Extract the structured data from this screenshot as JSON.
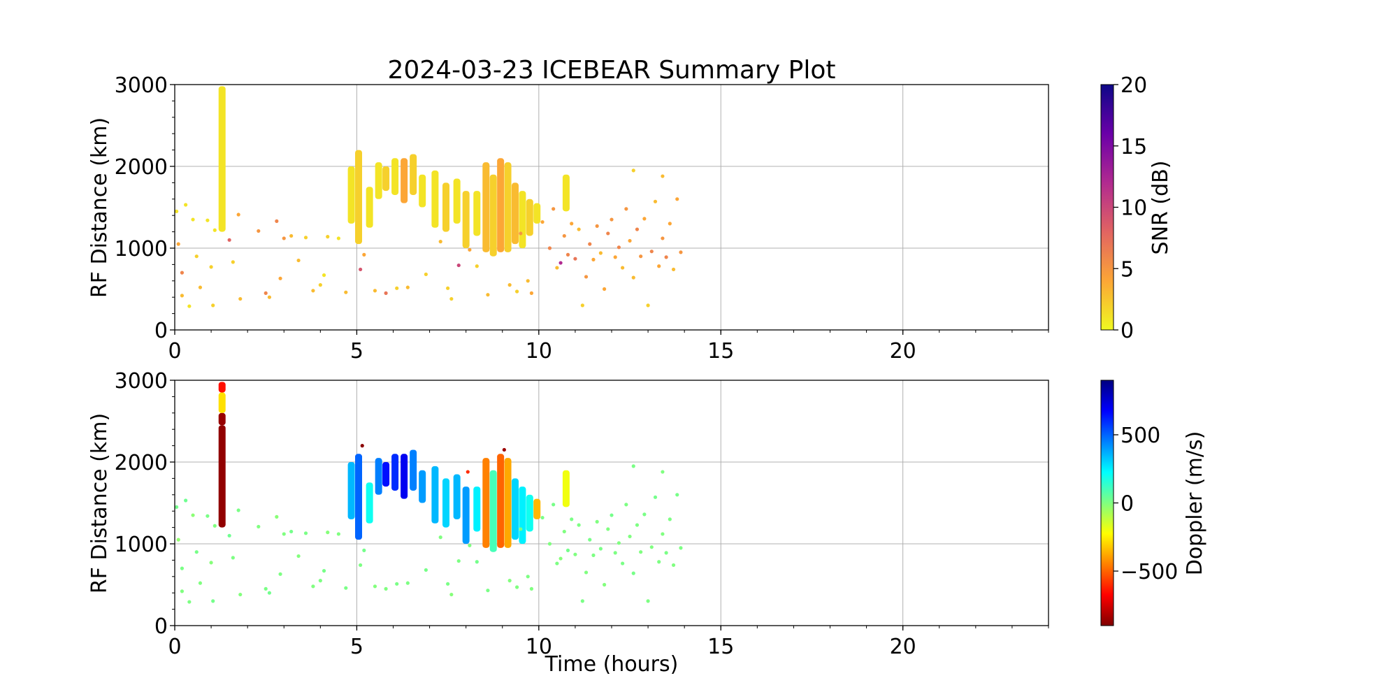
{
  "title": "2024-03-23 ICEBEAR Summary Plot",
  "chart_data": [
    {
      "type": "scatter",
      "panel": "top",
      "ylabel": "RF Distance (km)",
      "xlabel": "",
      "xlim": [
        0,
        24
      ],
      "ylim": [
        0,
        3000
      ],
      "xticks": [
        "0",
        "5",
        "10",
        "15",
        "20"
      ],
      "yticks": [
        "0",
        "1000",
        "2000",
        "3000"
      ],
      "grid": true,
      "color_variable": {
        "label": "SNR (dB)",
        "range": [
          0,
          20
        ],
        "ticks": [
          "0",
          "5",
          "10",
          "15",
          "20"
        ],
        "colormap": "plasma_r",
        "colors": [
          "#f0f921",
          "#fca636",
          "#e16462",
          "#b12a90",
          "#6a00a8",
          "#0d0887"
        ]
      },
      "points": [
        [
          0.05,
          1450,
          1
        ],
        [
          0.1,
          1050,
          4
        ],
        [
          0.2,
          700,
          6
        ],
        [
          0.2,
          420,
          3
        ],
        [
          0.3,
          1530,
          1
        ],
        [
          0.4,
          290,
          1
        ],
        [
          0.5,
          1350,
          1
        ],
        [
          0.6,
          900,
          2
        ],
        [
          0.7,
          520,
          3
        ],
        [
          0.9,
          1340,
          1
        ],
        [
          1.0,
          770,
          2
        ],
        [
          1.05,
          300,
          2
        ],
        [
          1.1,
          1220,
          1
        ],
        [
          1.5,
          1100,
          8
        ],
        [
          1.6,
          830,
          2
        ],
        [
          1.75,
          1410,
          4
        ],
        [
          1.8,
          380,
          3
        ],
        [
          2.3,
          1210,
          5
        ],
        [
          2.5,
          450,
          6
        ],
        [
          2.6,
          400,
          3
        ],
        [
          2.8,
          1330,
          6
        ],
        [
          2.9,
          630,
          4
        ],
        [
          3.0,
          1120,
          5
        ],
        [
          3.2,
          1150,
          3
        ],
        [
          3.4,
          850,
          3
        ],
        [
          3.6,
          1130,
          2
        ],
        [
          3.8,
          480,
          3
        ],
        [
          4.0,
          550,
          2
        ],
        [
          4.1,
          670,
          1
        ],
        [
          4.2,
          1140,
          2
        ],
        [
          4.5,
          1120,
          1
        ],
        [
          4.7,
          460,
          3
        ],
        [
          5.1,
          740,
          9
        ],
        [
          5.2,
          920,
          4
        ],
        [
          5.5,
          480,
          3
        ],
        [
          5.8,
          450,
          7
        ],
        [
          6.1,
          510,
          2
        ],
        [
          6.4,
          520,
          3
        ],
        [
          6.9,
          680,
          2
        ],
        [
          7.3,
          1080,
          3
        ],
        [
          7.5,
          510,
          2
        ],
        [
          7.6,
          380,
          2
        ],
        [
          7.8,
          790,
          10
        ],
        [
          8.1,
          980,
          4
        ],
        [
          8.3,
          780,
          2
        ],
        [
          8.6,
          430,
          3
        ],
        [
          9.2,
          550,
          3
        ],
        [
          9.4,
          470,
          2
        ],
        [
          9.5,
          1180,
          5
        ],
        [
          9.7,
          600,
          3
        ],
        [
          9.8,
          450,
          4
        ],
        [
          10.1,
          1320,
          4
        ],
        [
          10.3,
          1000,
          6
        ],
        [
          10.4,
          1480,
          5
        ],
        [
          10.5,
          760,
          3
        ],
        [
          10.6,
          820,
          12
        ],
        [
          10.7,
          1150,
          5
        ],
        [
          10.8,
          920,
          6
        ],
        [
          10.9,
          1300,
          4
        ],
        [
          11.0,
          870,
          7
        ],
        [
          11.1,
          1230,
          3
        ],
        [
          11.2,
          300,
          2
        ],
        [
          11.3,
          650,
          5
        ],
        [
          11.4,
          1050,
          6
        ],
        [
          11.5,
          860,
          4
        ],
        [
          11.6,
          1270,
          5
        ],
        [
          11.7,
          940,
          3
        ],
        [
          11.8,
          500,
          4
        ],
        [
          11.9,
          1180,
          6
        ],
        [
          12.0,
          1350,
          5
        ],
        [
          12.1,
          890,
          4
        ],
        [
          12.2,
          1010,
          6
        ],
        [
          12.3,
          760,
          3
        ],
        [
          12.4,
          1480,
          5
        ],
        [
          12.5,
          1090,
          4
        ],
        [
          12.6,
          640,
          3
        ],
        [
          12.7,
          1230,
          6
        ],
        [
          12.8,
          900,
          5
        ],
        [
          12.9,
          1360,
          4
        ],
        [
          13.0,
          300,
          2
        ],
        [
          13.1,
          960,
          6
        ],
        [
          13.2,
          1570,
          3
        ],
        [
          13.3,
          780,
          4
        ],
        [
          13.4,
          1120,
          5
        ],
        [
          13.5,
          890,
          6
        ],
        [
          13.6,
          1300,
          4
        ],
        [
          13.7,
          740,
          3
        ],
        [
          13.8,
          1600,
          4
        ],
        [
          13.9,
          950,
          5
        ],
        [
          12.6,
          1950,
          2
        ],
        [
          13.4,
          1880,
          3
        ]
      ],
      "swaths": [
        [
          1.3,
          1200,
          2980,
          1
        ],
        [
          4.85,
          1300,
          2000,
          1
        ],
        [
          5.05,
          1050,
          2200,
          2
        ],
        [
          5.35,
          1250,
          1750,
          1
        ],
        [
          5.6,
          1600,
          2050,
          1
        ],
        [
          5.8,
          1700,
          2000,
          2
        ],
        [
          6.05,
          1650,
          2100,
          1
        ],
        [
          6.3,
          1550,
          2100,
          4
        ],
        [
          6.55,
          1650,
          2150,
          2
        ],
        [
          6.8,
          1500,
          1900,
          1
        ],
        [
          7.15,
          1250,
          1950,
          1
        ],
        [
          7.45,
          1200,
          1800,
          2
        ],
        [
          7.75,
          1300,
          1850,
          1
        ],
        [
          8.0,
          1000,
          1700,
          2
        ],
        [
          8.3,
          1150,
          1700,
          1
        ],
        [
          8.55,
          950,
          2050,
          3
        ],
        [
          8.75,
          900,
          1900,
          2
        ],
        [
          8.95,
          950,
          2100,
          4
        ],
        [
          9.15,
          950,
          2050,
          2
        ],
        [
          9.35,
          1050,
          1800,
          3
        ],
        [
          9.55,
          1000,
          1700,
          1
        ],
        [
          9.75,
          1150,
          1600,
          2
        ],
        [
          9.95,
          1300,
          1550,
          1
        ],
        [
          10.75,
          1450,
          1900,
          1
        ]
      ]
    },
    {
      "type": "scatter",
      "panel": "bottom",
      "ylabel": "RF Distance (km)",
      "xlabel": "Time (hours)",
      "xlim": [
        0,
        24
      ],
      "ylim": [
        0,
        3000
      ],
      "xticks": [
        "0",
        "5",
        "10",
        "15",
        "20"
      ],
      "yticks": [
        "0",
        "1000",
        "2000",
        "3000"
      ],
      "grid": true,
      "color_variable": {
        "label": "Doppler (m/s)",
        "range": [
          -900,
          900
        ],
        "ticks": [
          "−500",
          "0",
          "500"
        ],
        "tick_values": [
          -500,
          0,
          500
        ],
        "colormap": "jet_r",
        "colors": [
          "#800000",
          "#ff0000",
          "#ff8000",
          "#ffff00",
          "#80ff80",
          "#00ffff",
          "#0080ff",
          "#0000ff",
          "#000080"
        ]
      },
      "points": [
        [
          0.05,
          1450,
          20
        ],
        [
          0.1,
          1050,
          -30
        ],
        [
          0.2,
          700,
          10
        ],
        [
          0.2,
          420,
          0
        ],
        [
          0.3,
          1530,
          30
        ],
        [
          0.4,
          290,
          5
        ],
        [
          0.5,
          1350,
          -20
        ],
        [
          0.6,
          900,
          15
        ],
        [
          0.7,
          520,
          0
        ],
        [
          0.9,
          1340,
          10
        ],
        [
          1.0,
          770,
          -10
        ],
        [
          1.05,
          300,
          20
        ],
        [
          1.1,
          1220,
          0
        ],
        [
          1.5,
          1100,
          30
        ],
        [
          1.6,
          830,
          5
        ],
        [
          1.75,
          1410,
          10
        ],
        [
          1.8,
          380,
          -5
        ],
        [
          2.3,
          1210,
          0
        ],
        [
          2.5,
          450,
          10
        ],
        [
          2.6,
          400,
          25
        ],
        [
          2.8,
          1330,
          -15
        ],
        [
          2.9,
          630,
          5
        ],
        [
          3.0,
          1120,
          0
        ],
        [
          3.2,
          1150,
          20
        ],
        [
          3.4,
          850,
          -5
        ],
        [
          3.6,
          1130,
          10
        ],
        [
          3.8,
          480,
          0
        ],
        [
          4.0,
          550,
          5
        ],
        [
          4.1,
          670,
          15
        ],
        [
          4.2,
          1140,
          -10
        ],
        [
          4.5,
          1120,
          0
        ],
        [
          4.7,
          460,
          10
        ],
        [
          5.1,
          740,
          5
        ],
        [
          5.2,
          920,
          20
        ],
        [
          5.5,
          480,
          -5
        ],
        [
          5.8,
          450,
          0
        ],
        [
          6.1,
          510,
          10
        ],
        [
          6.4,
          520,
          5
        ],
        [
          6.9,
          680,
          15
        ],
        [
          7.3,
          1080,
          0
        ],
        [
          7.5,
          510,
          10
        ],
        [
          7.6,
          380,
          -10
        ],
        [
          7.8,
          790,
          5
        ],
        [
          8.1,
          980,
          0
        ],
        [
          8.3,
          780,
          20
        ],
        [
          8.6,
          430,
          10
        ],
        [
          9.2,
          550,
          -5
        ],
        [
          9.4,
          470,
          0
        ],
        [
          9.5,
          1180,
          10
        ],
        [
          9.7,
          600,
          5
        ],
        [
          9.8,
          450,
          0
        ],
        [
          10.1,
          1320,
          10
        ],
        [
          10.3,
          1000,
          0
        ],
        [
          10.4,
          1480,
          15
        ],
        [
          10.5,
          760,
          5
        ],
        [
          10.6,
          820,
          -10
        ],
        [
          10.7,
          1150,
          0
        ],
        [
          10.8,
          920,
          20
        ],
        [
          10.9,
          1300,
          10
        ],
        [
          11.0,
          870,
          0
        ],
        [
          11.1,
          1230,
          5
        ],
        [
          11.2,
          300,
          10
        ],
        [
          11.3,
          650,
          0
        ],
        [
          11.4,
          1050,
          15
        ],
        [
          11.5,
          860,
          5
        ],
        [
          11.6,
          1270,
          0
        ],
        [
          11.7,
          940,
          10
        ],
        [
          11.8,
          500,
          -5
        ],
        [
          11.9,
          1180,
          0
        ],
        [
          12.0,
          1350,
          20
        ],
        [
          12.1,
          890,
          5
        ],
        [
          12.2,
          1010,
          0
        ],
        [
          12.3,
          760,
          10
        ],
        [
          12.4,
          1480,
          5
        ],
        [
          12.5,
          1090,
          0
        ],
        [
          12.6,
          640,
          15
        ],
        [
          12.7,
          1230,
          5
        ],
        [
          12.8,
          900,
          0
        ],
        [
          12.9,
          1360,
          10
        ],
        [
          13.0,
          300,
          5
        ],
        [
          13.1,
          960,
          0
        ],
        [
          13.2,
          1570,
          20
        ],
        [
          13.3,
          780,
          5
        ],
        [
          13.4,
          1120,
          0
        ],
        [
          13.5,
          890,
          10
        ],
        [
          13.6,
          1300,
          5
        ],
        [
          13.7,
          740,
          0
        ],
        [
          13.8,
          1600,
          15
        ],
        [
          13.9,
          950,
          5
        ],
        [
          12.6,
          1950,
          10
        ],
        [
          13.4,
          1880,
          0
        ],
        [
          5.15,
          2200,
          -880
        ],
        [
          9.05,
          2150,
          -850
        ],
        [
          8.05,
          1880,
          -600
        ]
      ],
      "swaths": [
        [
          1.3,
          1200,
          2450,
          -870
        ],
        [
          1.3,
          2450,
          2600,
          -860
        ],
        [
          1.3,
          2600,
          2850,
          -280
        ],
        [
          1.3,
          2850,
          2980,
          -650
        ],
        [
          4.85,
          1300,
          2000,
          350
        ],
        [
          5.05,
          1050,
          2100,
          500
        ],
        [
          5.35,
          1250,
          1750,
          200
        ],
        [
          5.6,
          1600,
          2050,
          450
        ],
        [
          5.8,
          1700,
          2000,
          650
        ],
        [
          6.05,
          1650,
          2100,
          600
        ],
        [
          6.3,
          1550,
          2100,
          700
        ],
        [
          6.55,
          1650,
          2150,
          450
        ],
        [
          6.8,
          1500,
          1900,
          400
        ],
        [
          7.15,
          1250,
          1950,
          350
        ],
        [
          7.45,
          1200,
          1800,
          300
        ],
        [
          7.75,
          1300,
          1850,
          350
        ],
        [
          8.0,
          1000,
          1700,
          400
        ],
        [
          8.3,
          1150,
          1700,
          250
        ],
        [
          8.55,
          950,
          2050,
          -450
        ],
        [
          8.75,
          900,
          1900,
          100
        ],
        [
          8.95,
          950,
          2100,
          -500
        ],
        [
          9.15,
          950,
          2050,
          -380
        ],
        [
          9.35,
          1050,
          1800,
          300
        ],
        [
          9.55,
          1000,
          1700,
          250
        ],
        [
          9.75,
          1150,
          1600,
          200
        ],
        [
          9.95,
          1300,
          1550,
          -350
        ],
        [
          10.75,
          1450,
          1900,
          -200
        ]
      ]
    }
  ]
}
